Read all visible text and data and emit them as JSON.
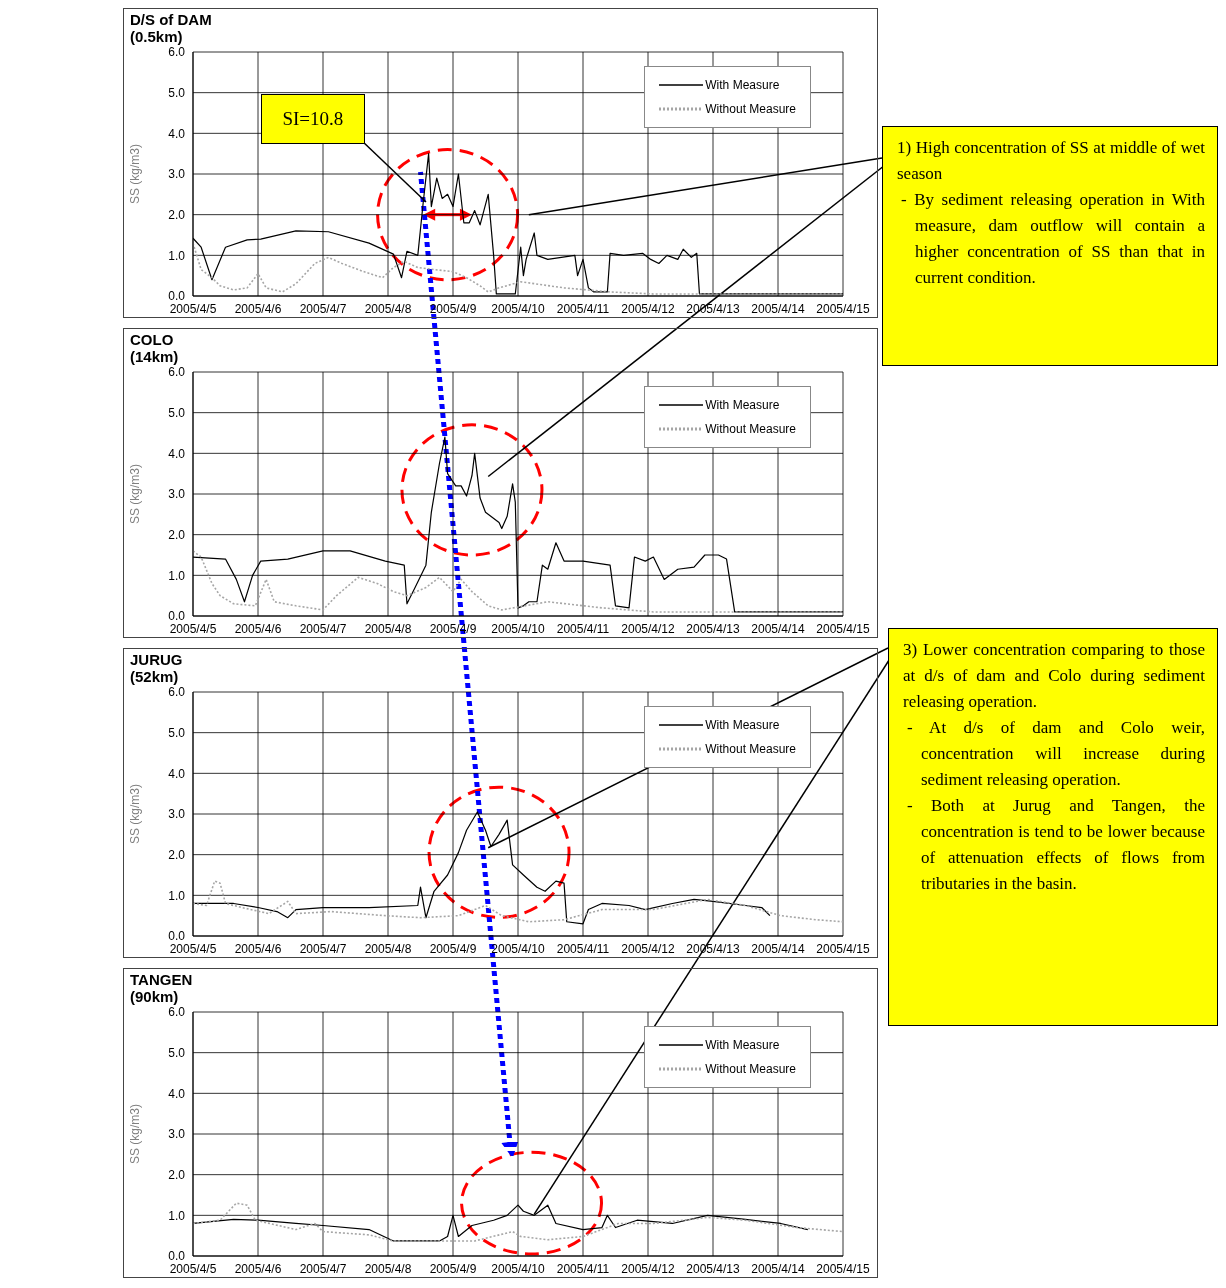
{
  "chart_data": [
    {
      "type": "line",
      "title": "D/S of DAM",
      "subtitle": "(0.5km)",
      "ylabel": "SS (kg/m3)",
      "xlim": [
        "2005-04-05",
        "2005-04-15"
      ],
      "ylim": [
        0,
        6
      ],
      "xticks": [
        {
          "value": "2005-04-05",
          "label": "2005/4/5"
        },
        {
          "value": "2005-04-06",
          "label": "2005/4/6"
        },
        {
          "value": "2005-04-07",
          "label": "2005/4/7"
        },
        {
          "value": "2005-04-08",
          "label": "2005/4/8"
        },
        {
          "value": "2005-04-09",
          "label": "2005/4/9"
        },
        {
          "value": "2005-04-10",
          "label": "2005/4/10"
        },
        {
          "value": "2005-04-11",
          "label": "2005/4/11"
        },
        {
          "value": "2005-04-12",
          "label": "2005/4/12"
        },
        {
          "value": "2005-04-13",
          "label": "2005/4/13"
        },
        {
          "value": "2005-04-14",
          "label": "2005/4/14"
        },
        {
          "value": "2005-04-15",
          "label": "2005/4/15"
        }
      ],
      "yticks": [
        {
          "value": 0,
          "label": "0.0"
        },
        {
          "value": 1,
          "label": "1.0"
        },
        {
          "value": 2,
          "label": "2.0"
        },
        {
          "value": 3,
          "label": "3.0"
        },
        {
          "value": 4,
          "label": "4.0"
        },
        {
          "value": 5,
          "label": "5.0"
        },
        {
          "value": 6,
          "label": "6.0"
        }
      ],
      "grid": true,
      "legend": "top right",
      "series": [
        {
          "name": "With Measure",
          "color": "#000000",
          "line_style": "solid",
          "x": [
            "2005-04-05T00:00",
            "2005-04-05T03:00",
            "2005-04-05T07:00",
            "2005-04-05T12:00",
            "2005-04-05T20:00",
            "2005-04-06T01:00",
            "2005-04-06T14:00",
            "2005-04-07T02:00",
            "2005-04-07T17:00",
            "2005-04-08T02:00",
            "2005-04-08T05:00",
            "2005-04-08T07:00",
            "2005-04-08T11:00",
            "2005-04-08T13:00",
            "2005-04-08T15:00",
            "2005-04-08T16:00",
            "2005-04-08T18:00",
            "2005-04-08T20:00",
            "2005-04-08T22:00",
            "2005-04-09T00:00",
            "2005-04-09T02:00",
            "2005-04-09T04:00",
            "2005-04-09T06:00",
            "2005-04-09T08:00",
            "2005-04-09T10:00",
            "2005-04-09T13:00",
            "2005-04-09T15:00",
            "2005-04-09T16:00",
            "2005-04-09T23:00",
            "2005-04-10T01:00",
            "2005-04-10T02:00",
            "2005-04-10T03:00",
            "2005-04-10T06:00",
            "2005-04-10T07:00",
            "2005-04-10T11:00",
            "2005-04-10T21:00",
            "2005-04-10T22:00",
            "2005-04-11T00:00",
            "2005-04-11T02:00",
            "2005-04-11T04:00",
            "2005-04-11T09:00",
            "2005-04-11T10:00",
            "2005-04-11T15:00",
            "2005-04-11T22:00",
            "2005-04-12T01:00",
            "2005-04-12T04:00",
            "2005-04-12T07:00",
            "2005-04-12T11:00",
            "2005-04-12T13:00",
            "2005-04-12T16:00",
            "2005-04-12T18:00",
            "2005-04-12T19:00",
            "2005-04-15T00:00"
          ],
          "values": [
            1.42,
            1.2,
            0.4,
            1.2,
            1.38,
            1.4,
            1.6,
            1.58,
            1.3,
            1.03,
            0.45,
            1.1,
            1.0,
            2.3,
            3.5,
            2.2,
            2.9,
            2.4,
            2.5,
            2.2,
            3.0,
            1.8,
            1.8,
            2.1,
            1.75,
            2.5,
            1.0,
            0.05,
            0.05,
            1.2,
            0.5,
            0.9,
            1.55,
            1.0,
            0.9,
            1.0,
            0.5,
            0.9,
            0.2,
            0.1,
            0.1,
            1.05,
            1.0,
            1.05,
            0.9,
            0.8,
            1.0,
            0.9,
            1.15,
            0.95,
            1.05,
            0.05,
            0.05
          ]
        },
        {
          "name": "Without Measure",
          "color": "#a6a6a6",
          "line_style": "dotted",
          "x": [
            "2005-04-05T00:00",
            "2005-04-05T03:00",
            "2005-04-05T07:00",
            "2005-04-05T10:00",
            "2005-04-05T15:00",
            "2005-04-05T20:00",
            "2005-04-06T00:00",
            "2005-04-06T03:00",
            "2005-04-06T09:00",
            "2005-04-06T14:00",
            "2005-04-06T21:00",
            "2005-04-07T02:00",
            "2005-04-07T07:00",
            "2005-04-07T15:00",
            "2005-04-07T22:00",
            "2005-04-08T02:00",
            "2005-04-08T06:00",
            "2005-04-08T11:00",
            "2005-04-08T17:00",
            "2005-04-09T00:00",
            "2005-04-09T05:00",
            "2005-04-09T10:00",
            "2005-04-09T13:00",
            "2005-04-09T17:00",
            "2005-04-10T01:00",
            "2005-04-10T17:00",
            "2005-04-11T10:00",
            "2005-04-12T02:00",
            "2005-04-15T00:00"
          ],
          "values": [
            1.3,
            0.65,
            0.45,
            0.25,
            0.15,
            0.2,
            0.55,
            0.2,
            0.1,
            0.3,
            0.8,
            0.95,
            0.8,
            0.6,
            0.45,
            0.7,
            0.85,
            0.7,
            0.65,
            0.6,
            0.45,
            0.25,
            0.1,
            0.2,
            0.35,
            0.2,
            0.1,
            0.05,
            0.05
          ]
        }
      ],
      "annotations": [
        {
          "text": "SI=10.8",
          "x": "2005-04-08T14:00",
          "y": 2.3
        },
        "1) High concentration of SS at middle of wet season",
        "- By sediment releasing operation in With measure, dam outflow will contain a higher concentration of SS than that in current condition."
      ]
    },
    {
      "type": "line",
      "title": "COLO",
      "subtitle": "(14km)",
      "ylabel": "SS (kg/m3)",
      "xlim": [
        "2005-04-05",
        "2005-04-15"
      ],
      "ylim": [
        0,
        6
      ],
      "xticks": [
        {
          "value": "2005-04-05",
          "label": "2005/4/5"
        },
        {
          "value": "2005-04-06",
          "label": "2005/4/6"
        },
        {
          "value": "2005-04-07",
          "label": "2005/4/7"
        },
        {
          "value": "2005-04-08",
          "label": "2005/4/8"
        },
        {
          "value": "2005-04-09",
          "label": "2005/4/9"
        },
        {
          "value": "2005-04-10",
          "label": "2005/4/10"
        },
        {
          "value": "2005-04-11",
          "label": "2005/4/11"
        },
        {
          "value": "2005-04-12",
          "label": "2005/4/12"
        },
        {
          "value": "2005-04-13",
          "label": "2005/4/13"
        },
        {
          "value": "2005-04-14",
          "label": "2005/4/14"
        },
        {
          "value": "2005-04-15",
          "label": "2005/4/15"
        }
      ],
      "yticks": [
        {
          "value": 0,
          "label": "0.0"
        },
        {
          "value": 1,
          "label": "1.0"
        },
        {
          "value": 2,
          "label": "2.0"
        },
        {
          "value": 3,
          "label": "3.0"
        },
        {
          "value": 4,
          "label": "4.0"
        },
        {
          "value": 5,
          "label": "5.0"
        },
        {
          "value": 6,
          "label": "6.0"
        }
      ],
      "grid": true,
      "legend": "top right",
      "series": [
        {
          "name": "With Measure",
          "color": "#000000",
          "line_style": "solid",
          "x": [
            "2005-04-05T00:00",
            "2005-04-05T12:00",
            "2005-04-05T16:00",
            "2005-04-05T19:00",
            "2005-04-05T22:00",
            "2005-04-06T01:00",
            "2005-04-06T11:00",
            "2005-04-07T00:00",
            "2005-04-07T10:00",
            "2005-04-07T23:00",
            "2005-04-08T06:00",
            "2005-04-08T07:00",
            "2005-04-08T10:00",
            "2005-04-08T14:00",
            "2005-04-08T16:00",
            "2005-04-08T19:00",
            "2005-04-08T21:00",
            "2005-04-08T22:00",
            "2005-04-09T01:00",
            "2005-04-09T03:00",
            "2005-04-09T05:00",
            "2005-04-09T07:00",
            "2005-04-09T08:00",
            "2005-04-09T10:00",
            "2005-04-09T12:00",
            "2005-04-09T17:00",
            "2005-04-09T18:00",
            "2005-04-09T20:00",
            "2005-04-09T22:00",
            "2005-04-09T23:00",
            "2005-04-10T00:00",
            "2005-04-10T02:00",
            "2005-04-10T04:00",
            "2005-04-10T07:00",
            "2005-04-10T09:00",
            "2005-04-10T11:00",
            "2005-04-10T14:00",
            "2005-04-10T17:00",
            "2005-04-11T00:00",
            "2005-04-11T10:00",
            "2005-04-11T12:00",
            "2005-04-11T17:00",
            "2005-04-11T19:00",
            "2005-04-11T23:00",
            "2005-04-12T02:00",
            "2005-04-12T06:00",
            "2005-04-12T11:00",
            "2005-04-12T17:00",
            "2005-04-12T21:00",
            "2005-04-13T02:00",
            "2005-04-13T05:00",
            "2005-04-13T08:00",
            "2005-04-15T00:00"
          ],
          "values": [
            1.45,
            1.4,
            0.9,
            0.35,
            1.0,
            1.35,
            1.4,
            1.6,
            1.6,
            1.35,
            1.25,
            0.3,
            0.7,
            1.25,
            2.55,
            3.75,
            4.4,
            3.5,
            3.2,
            3.2,
            2.95,
            3.45,
            4.0,
            2.9,
            2.55,
            2.3,
            2.15,
            2.45,
            3.25,
            2.8,
            0.2,
            0.25,
            0.35,
            0.35,
            1.25,
            1.15,
            1.8,
            1.35,
            1.35,
            1.25,
            0.25,
            0.2,
            1.45,
            1.35,
            1.45,
            0.9,
            1.15,
            1.2,
            1.5,
            1.5,
            1.4,
            0.1,
            0.1
          ]
        },
        {
          "name": "Without Measure",
          "color": "#a6a6a6",
          "line_style": "dotted",
          "x": [
            "2005-04-05T00:00",
            "2005-04-05T03:00",
            "2005-04-05T07:00",
            "2005-04-05T10:00",
            "2005-04-05T15:00",
            "2005-04-05T23:00",
            "2005-04-06T03:00",
            "2005-04-06T06:00",
            "2005-04-06T14:00",
            "2005-04-07T00:00",
            "2005-04-07T05:00",
            "2005-04-07T13:00",
            "2005-04-07T20:00",
            "2005-04-08T02:00",
            "2005-04-08T07:00",
            "2005-04-08T14:00",
            "2005-04-08T19:00",
            "2005-04-09T00:00",
            "2005-04-09T03:00",
            "2005-04-09T07:00",
            "2005-04-09T13:00",
            "2005-04-09T18:00",
            "2005-04-10T11:00",
            "2005-04-11T07:00",
            "2005-04-12T02:00",
            "2005-04-15T00:00"
          ],
          "values": [
            1.6,
            1.45,
            0.8,
            0.5,
            0.3,
            0.25,
            0.9,
            0.35,
            0.25,
            0.15,
            0.5,
            0.95,
            0.8,
            0.6,
            0.5,
            0.7,
            0.95,
            0.6,
            0.9,
            0.6,
            0.25,
            0.15,
            0.35,
            0.2,
            0.1,
            0.1
          ]
        }
      ]
    },
    {
      "type": "line",
      "title": "JURUG",
      "subtitle": "(52km)",
      "ylabel": "SS (kg/m3)",
      "xlim": [
        "2005-04-05",
        "2005-04-15"
      ],
      "ylim": [
        0,
        6
      ],
      "xticks": [
        {
          "value": "2005-04-05",
          "label": "2005/4/5"
        },
        {
          "value": "2005-04-06",
          "label": "2005/4/6"
        },
        {
          "value": "2005-04-07",
          "label": "2005/4/7"
        },
        {
          "value": "2005-04-08",
          "label": "2005/4/8"
        },
        {
          "value": "2005-04-09",
          "label": "2005/4/9"
        },
        {
          "value": "2005-04-10",
          "label": "2005/4/10"
        },
        {
          "value": "2005-04-11",
          "label": "2005/4/11"
        },
        {
          "value": "2005-04-12",
          "label": "2005/4/12"
        },
        {
          "value": "2005-04-13",
          "label": "2005/4/13"
        },
        {
          "value": "2005-04-14",
          "label": "2005/4/14"
        },
        {
          "value": "2005-04-15",
          "label": "2005/4/15"
        }
      ],
      "yticks": [
        {
          "value": 0,
          "label": "0.0"
        },
        {
          "value": 1,
          "label": "1.0"
        },
        {
          "value": 2,
          "label": "2.0"
        },
        {
          "value": 3,
          "label": "3.0"
        },
        {
          "value": 4,
          "label": "4.0"
        },
        {
          "value": 5,
          "label": "5.0"
        },
        {
          "value": 6,
          "label": "6.0"
        }
      ],
      "grid": true,
      "legend": "top right",
      "series": [
        {
          "name": "With Measure",
          "color": "#000000",
          "line_style": "solid",
          "x": [
            "2005-04-05T00:00",
            "2005-04-05T15:00",
            "2005-04-06T00:00",
            "2005-04-06T07:00",
            "2005-04-06T11:00",
            "2005-04-06T14:00",
            "2005-04-07T00:00",
            "2005-04-07T17:00",
            "2005-04-08T11:00",
            "2005-04-08T12:00",
            "2005-04-08T14:00",
            "2005-04-08T17:00",
            "2005-04-08T22:00",
            "2005-04-09T02:00",
            "2005-04-09T05:00",
            "2005-04-09T09:00",
            "2005-04-09T12:00",
            "2005-04-09T14:00",
            "2005-04-09T17:00",
            "2005-04-09T20:00",
            "2005-04-09T22:00",
            "2005-04-10T02:00",
            "2005-04-10T07:00",
            "2005-04-10T10:00",
            "2005-04-10T14:00",
            "2005-04-10T17:00",
            "2005-04-10T18:00",
            "2005-04-11T00:00",
            "2005-04-11T02:00",
            "2005-04-11T07:00",
            "2005-04-11T17:00",
            "2005-04-11T23:00",
            "2005-04-12T09:00",
            "2005-04-12T17:00",
            "2005-04-13T00:00",
            "2005-04-13T12:00",
            "2005-04-13T18:00",
            "2005-04-13T21:00"
          ],
          "values": [
            0.8,
            0.8,
            0.7,
            0.6,
            0.45,
            0.65,
            0.7,
            0.7,
            0.75,
            1.2,
            0.45,
            1.1,
            1.5,
            2.05,
            2.6,
            3.05,
            2.6,
            2.2,
            2.5,
            2.85,
            1.75,
            1.5,
            1.2,
            1.1,
            1.35,
            1.3,
            0.35,
            0.3,
            0.65,
            0.8,
            0.75,
            0.65,
            0.8,
            0.9,
            0.85,
            0.75,
            0.7,
            0.5
          ]
        },
        {
          "name": "Without Measure",
          "color": "#a6a6a6",
          "line_style": "dotted",
          "x": [
            "2005-04-05T00:00",
            "2005-04-05T05:00",
            "2005-04-05T08:00",
            "2005-04-05T10:00",
            "2005-04-05T12:00",
            "2005-04-05T18:00",
            "2005-04-06T04:00",
            "2005-04-06T11:00",
            "2005-04-06T14:00",
            "2005-04-07T03:00",
            "2005-04-07T23:00",
            "2005-04-08T12:00",
            "2005-04-09T02:00",
            "2005-04-09T12:00",
            "2005-04-09T18:00",
            "2005-04-10T04:00",
            "2005-04-10T17:00",
            "2005-04-11T07:00",
            "2005-04-12T02:00",
            "2005-04-12T22:00",
            "2005-04-13T12:00",
            "2005-04-14T01:00",
            "2005-04-14T14:00",
            "2005-04-15T00:00"
          ],
          "values": [
            0.8,
            0.75,
            1.35,
            1.3,
            0.8,
            0.7,
            0.55,
            0.85,
            0.55,
            0.6,
            0.5,
            0.45,
            0.5,
            0.75,
            0.5,
            0.35,
            0.4,
            0.65,
            0.65,
            0.9,
            0.75,
            0.5,
            0.4,
            0.35
          ]
        }
      ],
      "annotations": [
        "3) Lower concentration comparing to those at d/s of dam and Colo during sediment releasing operation.",
        "- At d/s of dam and Colo weir, concentration will increase during sediment releasing operation.",
        "- Both at Jurug and Tangen, the concentration is tend to be lower because of attenuation effects of flows from tributaries in the basin."
      ]
    },
    {
      "type": "line",
      "title": "TANGEN",
      "subtitle": "(90km)",
      "ylabel": "SS (kg/m3)",
      "xlim": [
        "2005-04-05",
        "2005-04-15"
      ],
      "ylim": [
        0,
        6
      ],
      "xticks": [
        {
          "value": "2005-04-05",
          "label": "2005/4/5"
        },
        {
          "value": "2005-04-06",
          "label": "2005/4/6"
        },
        {
          "value": "2005-04-07",
          "label": "2005/4/7"
        },
        {
          "value": "2005-04-08",
          "label": "2005/4/8"
        },
        {
          "value": "2005-04-09",
          "label": "2005/4/9"
        },
        {
          "value": "2005-04-10",
          "label": "2005/4/10"
        },
        {
          "value": "2005-04-11",
          "label": "2005/4/11"
        },
        {
          "value": "2005-04-12",
          "label": "2005/4/12"
        },
        {
          "value": "2005-04-13",
          "label": "2005/4/13"
        },
        {
          "value": "2005-04-14",
          "label": "2005/4/14"
        },
        {
          "value": "2005-04-15",
          "label": "2005/4/15"
        }
      ],
      "yticks": [
        {
          "value": 0,
          "label": "0.0"
        },
        {
          "value": 1,
          "label": "1.0"
        },
        {
          "value": 2,
          "label": "2.0"
        },
        {
          "value": 3,
          "label": "3.0"
        },
        {
          "value": 4,
          "label": "4.0"
        },
        {
          "value": 5,
          "label": "5.0"
        },
        {
          "value": 6,
          "label": "6.0"
        }
      ],
      "grid": true,
      "legend": "top right",
      "series": [
        {
          "name": "With Measure",
          "color": "#000000",
          "line_style": "solid",
          "x": [
            "2005-04-05T00:00",
            "2005-04-05T15:00",
            "2005-04-06T00:00",
            "2005-04-06T14:00",
            "2005-04-07T00:00",
            "2005-04-07T17:00",
            "2005-04-08T02:00",
            "2005-04-08T19:00",
            "2005-04-08T22:00",
            "2005-04-09T00:00",
            "2005-04-09T02:00",
            "2005-04-09T07:00",
            "2005-04-09T15:00",
            "2005-04-09T20:00",
            "2005-04-10T00:00",
            "2005-04-10T02:00",
            "2005-04-10T06:00",
            "2005-04-10T11:00",
            "2005-04-10T14:00",
            "2005-04-11T00:00",
            "2005-04-11T07:00",
            "2005-04-11T09:00",
            "2005-04-11T12:00",
            "2005-04-11T20:00",
            "2005-04-12T09:00",
            "2005-04-12T22:00",
            "2005-04-13T12:00",
            "2005-04-14T01:00",
            "2005-04-14T11:00"
          ],
          "values": [
            0.8,
            0.9,
            0.88,
            0.8,
            0.75,
            0.65,
            0.37,
            0.37,
            0.48,
            1.0,
            0.48,
            0.75,
            0.88,
            1.0,
            1.25,
            1.1,
            1.0,
            1.25,
            0.8,
            0.65,
            0.7,
            1.0,
            0.7,
            0.88,
            0.8,
            1.0,
            0.9,
            0.8,
            0.65
          ]
        },
        {
          "name": "Without Measure",
          "color": "#a6a6a6",
          "line_style": "dotted",
          "x": [
            "2005-04-05T00:00",
            "2005-04-05T10:00",
            "2005-04-05T16:00",
            "2005-04-05T20:00",
            "2005-04-05T23:00",
            "2005-04-06T14:00",
            "2005-04-06T21:00",
            "2005-04-07T00:00",
            "2005-04-07T17:00",
            "2005-04-08T02:00",
            "2005-04-08T19:00",
            "2005-04-09T08:00",
            "2005-04-09T22:00",
            "2005-04-10T01:00",
            "2005-04-10T11:00",
            "2005-04-11T00:00",
            "2005-04-11T13:00",
            "2005-04-12T02:00",
            "2005-04-12T16:00",
            "2005-04-12T22:00",
            "2005-04-13T12:00",
            "2005-04-14T07:00",
            "2005-04-15T00:00"
          ],
          "values": [
            0.8,
            0.88,
            1.3,
            1.25,
            0.88,
            0.65,
            0.8,
            0.6,
            0.52,
            0.37,
            0.37,
            0.37,
            0.6,
            0.48,
            0.4,
            0.48,
            0.8,
            0.8,
            0.9,
            0.95,
            0.88,
            0.7,
            0.6
          ]
        }
      ]
    }
  ]
}
